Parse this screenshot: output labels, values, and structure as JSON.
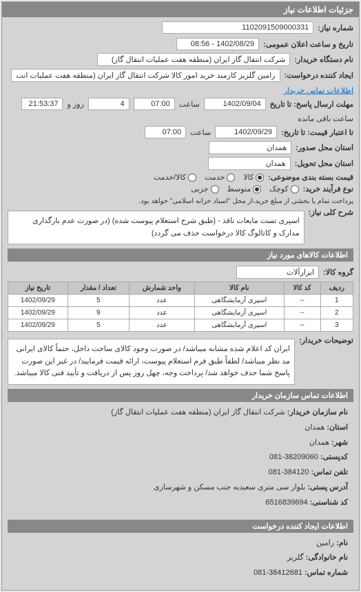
{
  "header": {
    "title": "جزئیات اطلاعات نیاز"
  },
  "need": {
    "number_label": "شماره نیاز:",
    "number": "1102091509000331",
    "announce_label": "تاریخ و ساعت اعلان عمومی:",
    "announce": "1402/08/29 - 08:56",
    "buyer_org_label": "نام دستگاه خریدار:",
    "buyer_org": "شرکت انتقال گاز ایران (منطقه هفت عملیات انتقال گاز)",
    "requester_label": "ایجاد کننده درخواست:",
    "requester": "رامين گلريز کارمند خريد امور کالا شرکت انتقال گاز ايران (منطقه هفت عمليات انت",
    "contact_link": "اطلاعات تماس خریدار",
    "deadline_label": "مهلت ارسال پاسخ: تا تاریخ",
    "deadline_date": "1402/09/04",
    "time_label": "ساعت",
    "deadline_time": "07:00",
    "days_remaining": "4",
    "days_unit": "روز و",
    "time_remaining": "21:53:37",
    "remaining_label": "ساعت باقی مانده",
    "validity_label": "تا اعتبار قیمت: تا تاریخ:",
    "validity_date": "1402/09/29",
    "validity_time": "07:00",
    "issue_loc_label": "استان محل صدور:",
    "issue_loc": "همدان",
    "delivery_loc_label": "استان محل تحویل:",
    "delivery_loc": "همدان",
    "pack_type_label": "قیمت بسته بندی موضوعی:",
    "kala": "کالا",
    "service": "خدمت",
    "kalakh": "کالا/خدمت",
    "proc_type_label": "نوع فرآیند خرید:",
    "small": "کوچک",
    "medium": "متوسط",
    "partial": "جزیی",
    "partial_note": "پرداخت تمام یا بخشی از مبلغ خرید،از محل \"اسناد خزانه اسلامی\" خواهد بود.",
    "desc_label": "شرح کلی نیاز:",
    "desc": "اسپری تست مایعات نافذ - (طبق شرح استعلام پیوست شده) (در صورت عدم بارگذاری مدارک و کاتالوگ کالا درخواست حذف می گردد)"
  },
  "goods": {
    "header": "اطلاعات کالاهای مورد نیاز",
    "group_label": "گروه کالا:",
    "group": "ابزارآلات",
    "cols": [
      "ردیف",
      "کد کالا",
      "نام کالا",
      "واحد شمارش",
      "تعداد / مقدار",
      "تاریخ نیاز"
    ],
    "rows": [
      [
        "1",
        "--",
        "اسپری آزمایشگاهی",
        "عدد",
        "5",
        "1402/09/29"
      ],
      [
        "2",
        "--",
        "اسپری آزمایشگاهی",
        "عدد",
        "9",
        "1402/09/29"
      ],
      [
        "3",
        "--",
        "اسپری آزمایشگاهی",
        "عدد",
        "5",
        "1402/09/29"
      ]
    ],
    "buyer_note_label": "توضیحات خریدار:",
    "buyer_note": "ایران کد اعلام شده مشابه میباشد/ در صورت وجود کالای ساخت داخل، حتماً کالای ایرانی مد نظر میباشد/ لطفاً طبق فرم استعلام پیوست، ارائه قیمت فرمایید/ در غیر این صورت پاسخ شما حذف خواهد شد/ پرداخت وجه، چهل روز پس از دریافت و تأیید فنی کالا میباشد."
  },
  "org": {
    "header": "اطلاعات تماس سازمان خریدار",
    "name_label": "نام سازمان خریدار:",
    "name": "شرکت انتقال گاز ایران (منطقه هفت عملیات انتقال گاز)",
    "province_label": "استان:",
    "province": "همدان",
    "city_label": "شهر:",
    "city": "همدان",
    "postal_label": "کدپستی:",
    "postal": "38209060-081",
    "phone_label": "تلفن تماس:",
    "phone": "384120-081",
    "address_label": "آدرس پستی:",
    "address": "بلوار سی متری سعیدیه جنب مسکن و شهرسازی",
    "econ_label": "کد شناسنی:",
    "econ": "6516839694",
    "req_header": "اطلاعات ایجاد کننده درخواست",
    "req_name_label": "نام:",
    "req_name": "رامین",
    "req_family_label": "نام خانوادگی:",
    "req_family": "گلریز",
    "req_phone_label": "شماره تماس:",
    "req_phone": "38412681-081"
  }
}
